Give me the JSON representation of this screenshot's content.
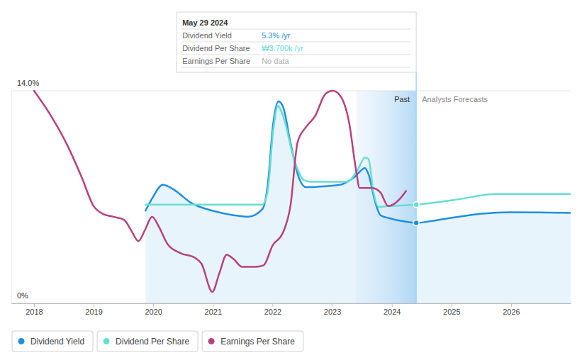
{
  "chart_data": {
    "type": "line",
    "xlim": [
      2017.62,
      2027.0
    ],
    "xticks": [
      2018,
      2019,
      2020,
      2021,
      2022,
      2023,
      2024,
      2025,
      2026
    ],
    "ylim": [
      0,
      14
    ],
    "yticks": [
      {
        "value": 0,
        "label": "0%"
      },
      {
        "value": 14,
        "label": "14.0%"
      }
    ],
    "grid": true,
    "legend": "bottom-left",
    "regions": [
      {
        "label": "Past",
        "x0": 2023.4,
        "x1": 2024.41
      },
      {
        "label": "Analysts Forecasts",
        "x0": 2024.41,
        "x1": 2027.0
      }
    ],
    "tooltip": {
      "title": "May 29 2024",
      "x": 2024.41,
      "rows": [
        {
          "label": "Dividend Yield",
          "value": "5.3% /yr"
        },
        {
          "label": "Dividend Per Share",
          "value": "₩3.700k /yr"
        },
        {
          "label": "Earnings Per Share",
          "value": "No data"
        }
      ]
    },
    "series": [
      {
        "name": "Dividend Yield",
        "color": "#1f8fe0",
        "type": "area",
        "x": [
          2019.87,
          2019.98,
          2020.16,
          2020.34,
          2020.64,
          2020.99,
          2021.35,
          2021.59,
          2021.83,
          2021.92,
          2022.01,
          2022.1,
          2022.18,
          2022.3,
          2022.44,
          2022.56,
          2022.83,
          2023.13,
          2023.37,
          2023.55,
          2023.61,
          2023.72,
          2023.81,
          2023.96,
          2024.2,
          2024.41,
          2024.79,
          2025.51,
          2025.98,
          2027.0
        ],
        "values": [
          6.1,
          6.9,
          7.8,
          7.5,
          6.6,
          6.1,
          5.8,
          5.7,
          6.2,
          7.8,
          11.8,
          13.3,
          12.9,
          10.6,
          8.3,
          7.65,
          7.7,
          7.8,
          8.3,
          8.9,
          8.5,
          6.7,
          5.8,
          5.6,
          5.4,
          5.3,
          5.5,
          5.9,
          6.0,
          5.95
        ]
      },
      {
        "name": "Dividend Per Share",
        "color": "#66ded0",
        "type": "line",
        "x": [
          2019.87,
          2021.83,
          2021.92,
          2022.01,
          2022.09,
          2022.18,
          2022.36,
          2022.53,
          2022.65,
          2023.25,
          2023.43,
          2023.55,
          2023.61,
          2023.69,
          2023.78,
          2023.96,
          2024.41,
          2025.04,
          2025.75,
          2027.0
        ],
        "values": [
          6.5,
          6.5,
          7.4,
          11.3,
          13.0,
          12.3,
          9.5,
          8.1,
          8.0,
          8.0,
          8.8,
          9.6,
          9.5,
          7.4,
          6.35,
          6.4,
          6.5,
          6.8,
          7.2,
          7.2
        ]
      },
      {
        "name": "Earnings Per Share",
        "color": "#b8407e",
        "type": "line",
        "x": [
          2018.0,
          2018.26,
          2018.56,
          2018.8,
          2019.0,
          2019.15,
          2019.33,
          2019.51,
          2019.63,
          2019.75,
          2019.87,
          2019.98,
          2020.1,
          2020.24,
          2020.46,
          2020.7,
          2020.81,
          2020.99,
          2021.11,
          2021.23,
          2021.35,
          2021.49,
          2021.71,
          2021.85,
          2022.0,
          2022.18,
          2022.3,
          2022.42,
          2022.56,
          2022.71,
          2022.89,
          2023.01,
          2023.13,
          2023.28,
          2023.4,
          2023.46,
          2023.67,
          2023.81,
          2023.94,
          2024.02,
          2024.14,
          2024.24
        ],
        "values": [
          14.0,
          12.5,
          10.4,
          8.3,
          6.4,
          5.9,
          5.7,
          5.5,
          4.8,
          4.1,
          4.9,
          5.7,
          5.0,
          3.9,
          3.3,
          3.0,
          2.6,
          0.75,
          2.0,
          3.2,
          2.9,
          2.4,
          2.4,
          2.5,
          3.8,
          4.7,
          6.4,
          10.6,
          11.6,
          12.3,
          13.8,
          14.0,
          13.7,
          12.0,
          8.8,
          7.6,
          7.6,
          7.3,
          6.4,
          6.5,
          6.9,
          7.4
        ]
      }
    ]
  }
}
